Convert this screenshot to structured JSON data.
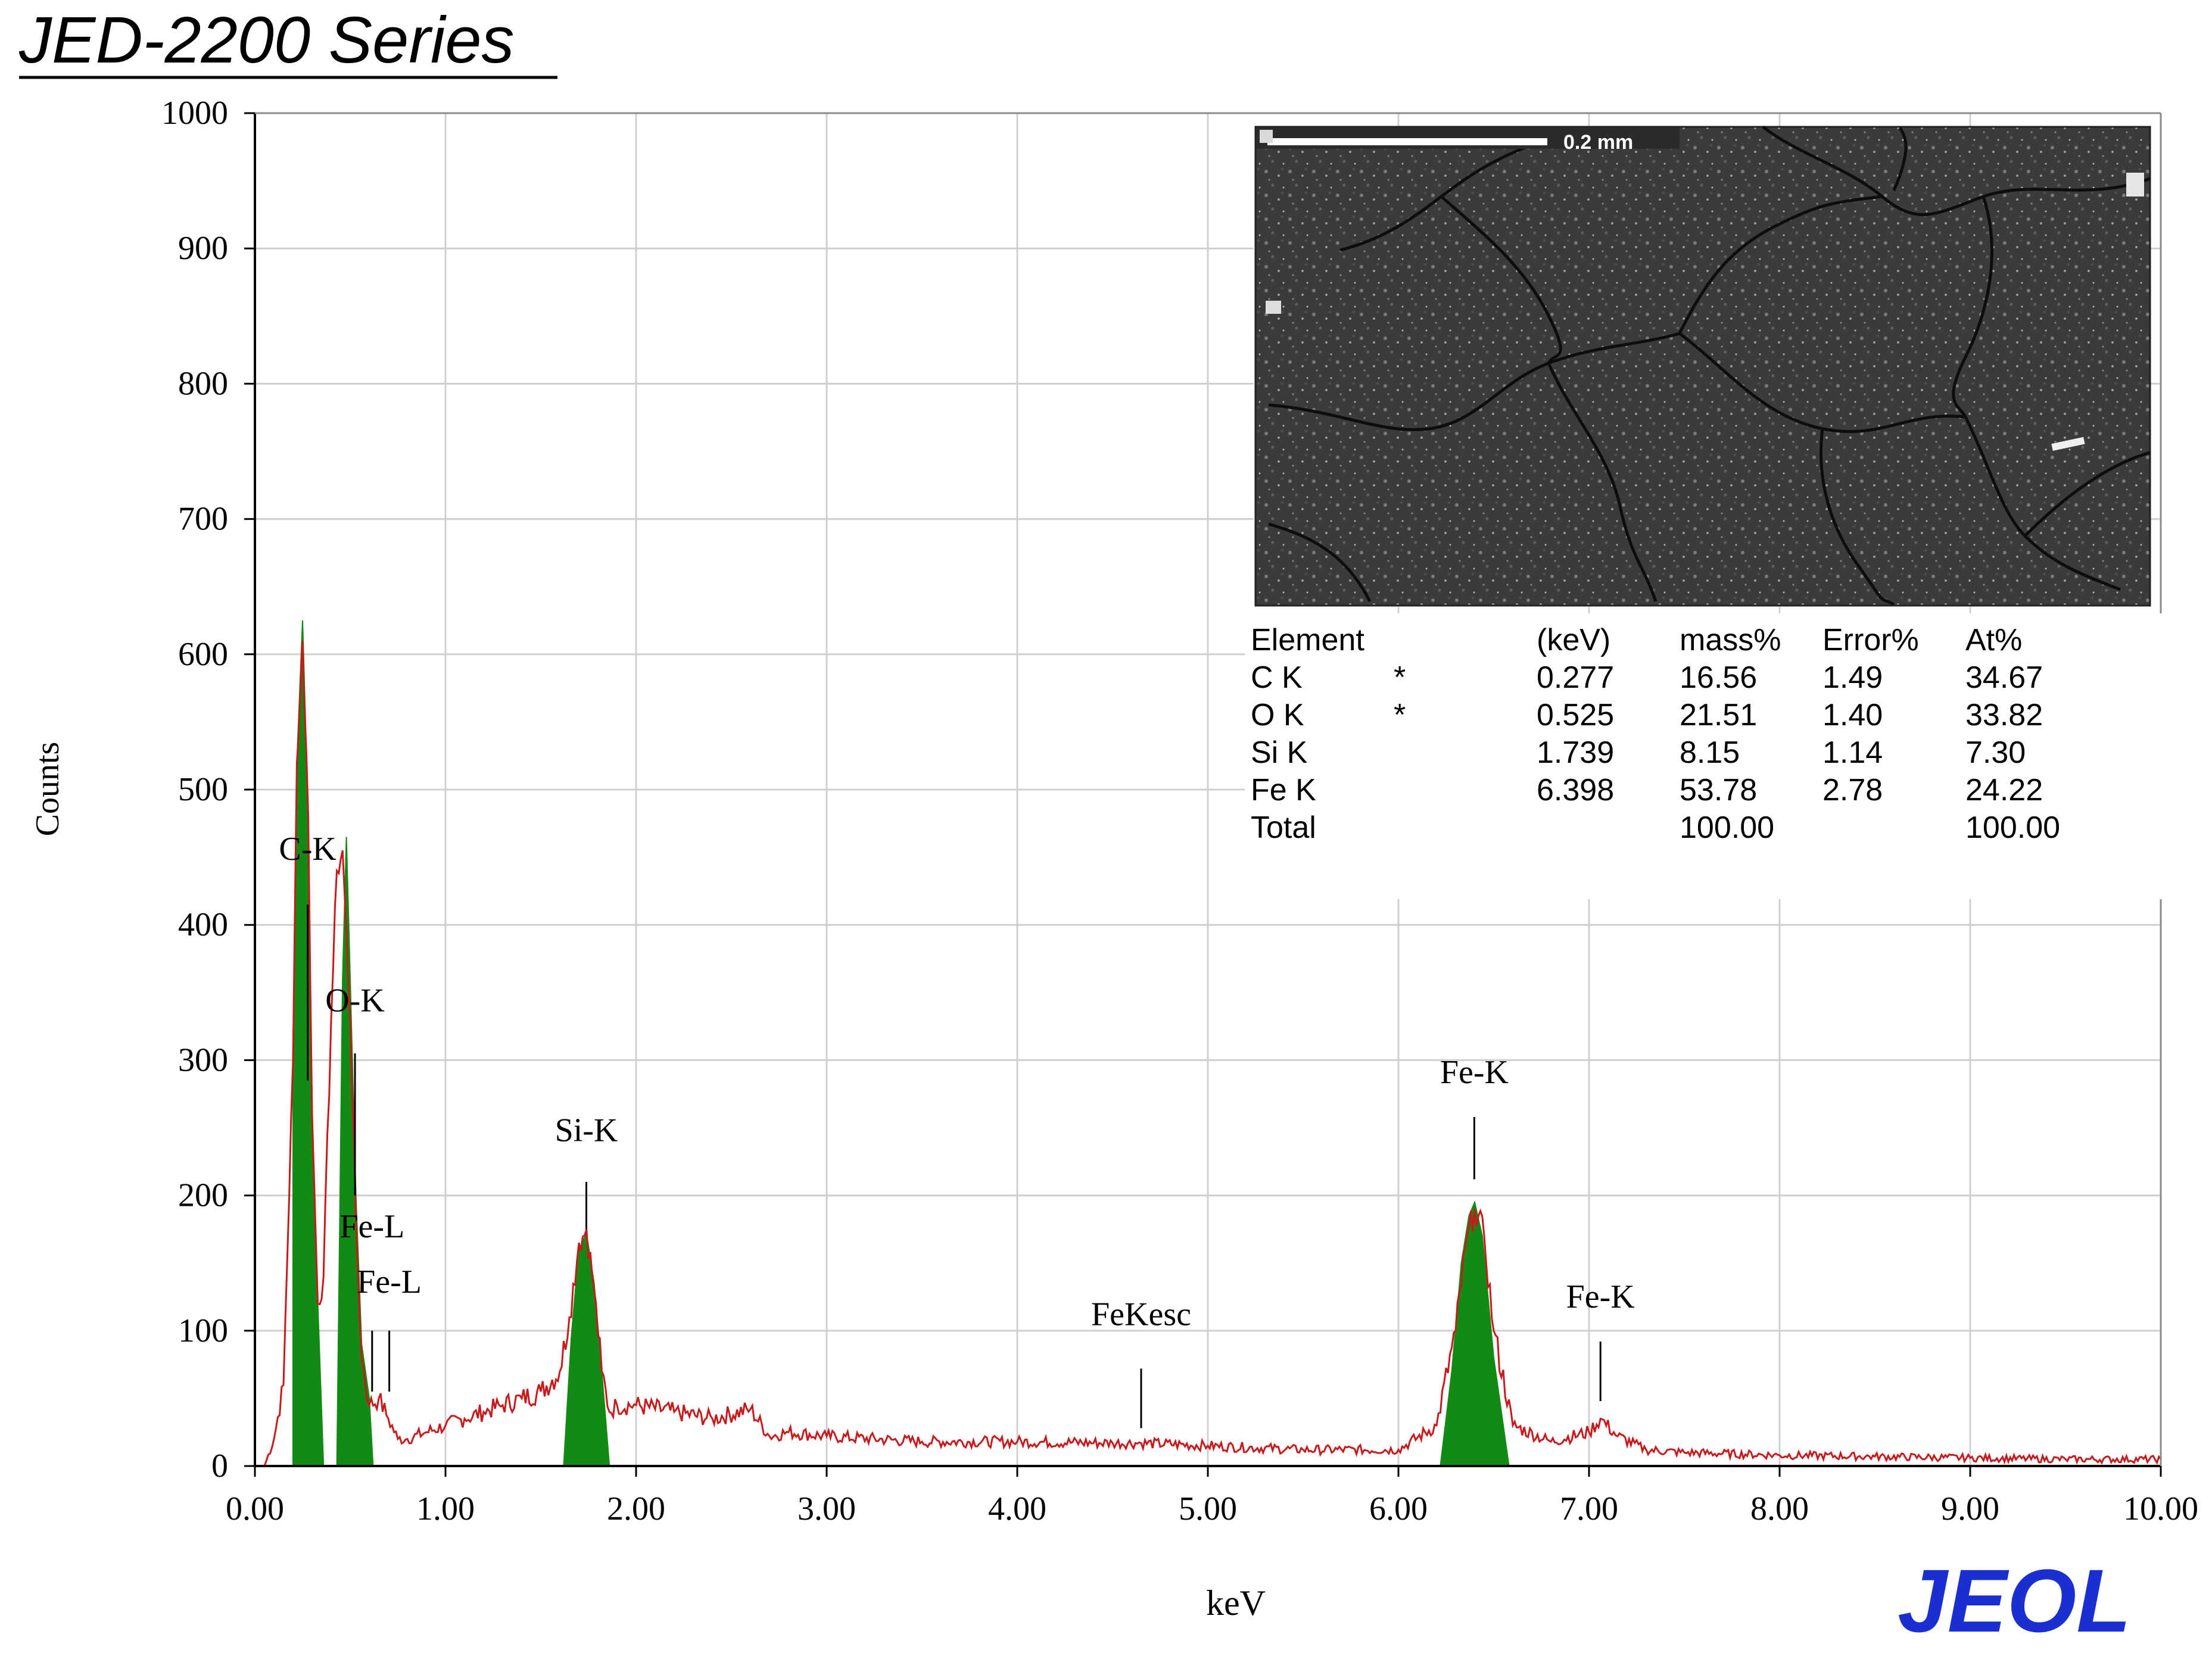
{
  "header": {
    "title": "JED-2200 Series"
  },
  "brand": {
    "logo_text": "JEOL",
    "logo_color": "#1a2fd0"
  },
  "colors": {
    "spectrum_line": "#c8191c",
    "peak_fill": "#138a13",
    "grid": "#cfcfcf",
    "axis": "#000000"
  },
  "sem_image": {
    "scale_label": "0.2 mm"
  },
  "results_table": {
    "headers": [
      "Element",
      "",
      "(keV)",
      "mass%",
      "Error%",
      "At%"
    ],
    "rows": [
      [
        "C  K",
        "*",
        "0.277",
        "16.56",
        "1.49",
        "34.67"
      ],
      [
        "O  K",
        "*",
        "0.525",
        "21.51",
        "1.40",
        "33.82"
      ],
      [
        "Si K",
        "",
        "1.739",
        "8.15",
        "1.14",
        "7.30"
      ],
      [
        "Fe K",
        "",
        "6.398",
        "53.78",
        "2.78",
        "24.22"
      ],
      [
        "Total",
        "",
        "",
        "100.00",
        "",
        "100.00"
      ]
    ]
  },
  "chart_data": {
    "type": "area",
    "xlabel": "keV",
    "ylabel": "Counts",
    "xlim": [
      0,
      10
    ],
    "ylim": [
      0,
      1000
    ],
    "x_ticks": [
      "0.00",
      "1.00",
      "2.00",
      "3.00",
      "4.00",
      "5.00",
      "6.00",
      "7.00",
      "8.00",
      "9.00",
      "10.00"
    ],
    "y_ticks": [
      "0",
      "100",
      "200",
      "300",
      "400",
      "500",
      "600",
      "700",
      "800",
      "900",
      "1000"
    ],
    "grid": true,
    "spectrum": {
      "x": [
        0.05,
        0.1,
        0.15,
        0.2,
        0.22,
        0.25,
        0.28,
        0.3,
        0.33,
        0.36,
        0.4,
        0.43,
        0.46,
        0.5,
        0.53,
        0.56,
        0.6,
        0.65,
        0.7,
        0.75,
        0.8,
        0.9,
        1.0,
        1.1,
        1.2,
        1.3,
        1.4,
        1.5,
        1.6,
        1.65,
        1.7,
        1.74,
        1.78,
        1.82,
        1.86,
        1.9,
        2.0,
        2.2,
        2.4,
        2.6,
        2.7,
        2.8,
        3.0,
        3.5,
        4.0,
        4.5,
        4.65,
        5.0,
        5.5,
        6.0,
        6.2,
        6.3,
        6.35,
        6.4,
        6.45,
        6.5,
        6.6,
        6.8,
        7.0,
        7.06,
        7.15,
        7.3,
        7.5,
        8.0,
        8.5,
        9.0,
        9.5,
        10.0
      ],
      "counts": [
        0,
        20,
        60,
        300,
        520,
        610,
        480,
        260,
        120,
        140,
        330,
        440,
        455,
        330,
        180,
        80,
        45,
        50,
        35,
        20,
        20,
        25,
        30,
        35,
        40,
        45,
        50,
        55,
        70,
        110,
        165,
        175,
        130,
        70,
        40,
        45,
        45,
        40,
        35,
        42,
        22,
        25,
        22,
        18,
        18,
        17,
        17,
        15,
        12,
        12,
        30,
        100,
        160,
        190,
        170,
        100,
        30,
        18,
        25,
        35,
        22,
        12,
        10,
        8,
        7,
        6,
        5,
        5
      ]
    },
    "peaks": [
      {
        "name": "C-K",
        "x": [
          0.2,
          0.22,
          0.25,
          0.28,
          0.3,
          0.33,
          0.36
        ],
        "counts": [
          300,
          520,
          625,
          480,
          260,
          120,
          0
        ]
      },
      {
        "name": "O-K",
        "x": [
          0.43,
          0.46,
          0.48,
          0.5,
          0.53,
          0.56,
          0.6,
          0.62
        ],
        "counts": [
          0,
          360,
          465,
          360,
          200,
          90,
          50,
          0
        ]
      },
      {
        "name": "Si-K",
        "x": [
          1.62,
          1.66,
          1.7,
          1.74,
          1.78,
          1.82,
          1.86
        ],
        "counts": [
          0,
          95,
          160,
          172,
          135,
          70,
          0
        ]
      },
      {
        "name": "Fe-K",
        "x": [
          6.22,
          6.28,
          6.33,
          6.37,
          6.4,
          6.44,
          6.5,
          6.58
        ],
        "counts": [
          0,
          70,
          150,
          185,
          195,
          170,
          80,
          0
        ]
      }
    ],
    "annotations": [
      {
        "label": "C-K",
        "x": 0.277,
        "text_y": 448,
        "line_top": 415,
        "line_bottom": 285
      },
      {
        "label": "O-K",
        "x": 0.525,
        "text_y": 336,
        "line_top": 305,
        "line_bottom": 200
      },
      {
        "label": "Fe-L",
        "x": 0.615,
        "text_y": 169,
        "line_top": 100,
        "line_bottom": 55
      },
      {
        "label": "Fe-L",
        "x": 0.705,
        "text_y": 128,
        "line_top": 100,
        "line_bottom": 55
      },
      {
        "label": "Si-K",
        "x": 1.739,
        "text_y": 240,
        "line_top": 210,
        "line_bottom": 175
      },
      {
        "label": "FeKesc",
        "x": 4.65,
        "text_y": 104,
        "line_top": 72,
        "line_bottom": 28
      },
      {
        "label": "Fe-K",
        "x": 6.398,
        "text_y": 283,
        "line_top": 258,
        "line_bottom": 212
      },
      {
        "label": "Fe-K",
        "x": 7.06,
        "text_y": 117,
        "line_top": 92,
        "line_bottom": 48
      }
    ]
  }
}
